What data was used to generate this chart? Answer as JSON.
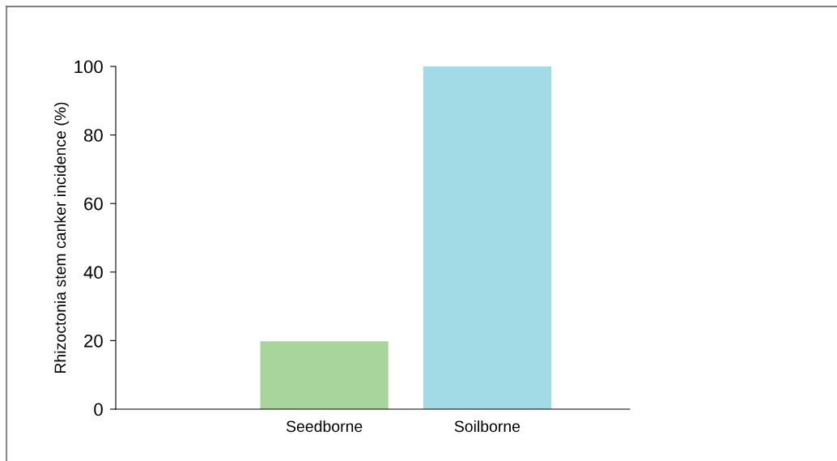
{
  "chart_data": {
    "type": "bar",
    "ylabel": "Rhizoctonia stem canker incidence (%)",
    "categories": [
      "Seedborne",
      "Soilborne"
    ],
    "values": [
      19.8,
      100
    ],
    "colors": [
      "#a8d59b",
      "#a2dbe5"
    ],
    "ylim": [
      0,
      100
    ],
    "yticks": [
      0,
      20,
      40,
      60,
      80,
      100
    ],
    "grid": false,
    "legend": false
  }
}
